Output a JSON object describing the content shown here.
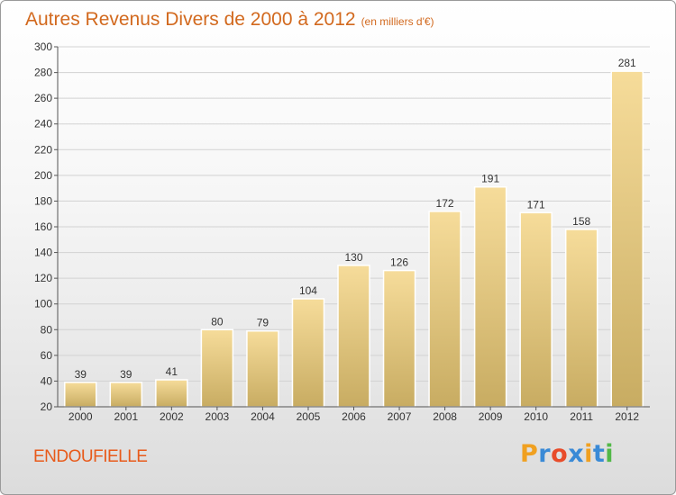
{
  "chart_data": {
    "type": "bar",
    "title": "Autres Revenus Divers de 2000 à 2012",
    "subtitle": "(en milliers d'€)",
    "categories": [
      "2000",
      "2001",
      "2002",
      "2003",
      "2004",
      "2005",
      "2006",
      "2007",
      "2008",
      "2009",
      "2010",
      "2011",
      "2012"
    ],
    "values": [
      39,
      39,
      41,
      80,
      79,
      104,
      130,
      126,
      172,
      191,
      171,
      158,
      281
    ],
    "ylim": [
      20,
      300
    ],
    "yticks": [
      20,
      40,
      60,
      80,
      100,
      120,
      140,
      160,
      180,
      200,
      220,
      240,
      260,
      280,
      300
    ],
    "grid": true,
    "bar_color_top": "#f6dc9a",
    "bar_color_bottom": "#c8ac62"
  },
  "footer": {
    "commune": "ENDOUFIELLE",
    "logo": {
      "letters": [
        "P",
        "r",
        "o",
        "x",
        "i",
        "t",
        "i"
      ],
      "colors": [
        "#f0a020",
        "#3a8ad6",
        "#e84c2a",
        "#3a8ad6",
        "#f0a020",
        "#3a8ad6",
        "#52b848"
      ]
    }
  }
}
